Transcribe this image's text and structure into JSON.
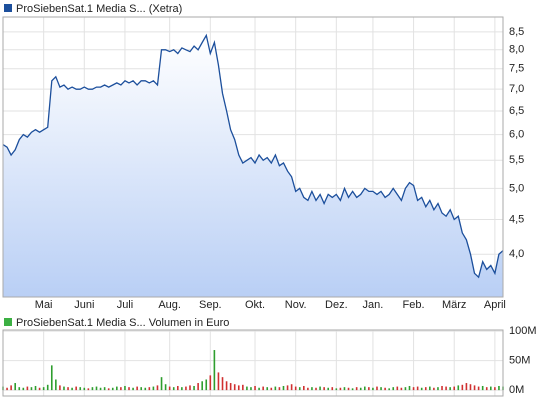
{
  "chart_data": [
    {
      "type": "line",
      "log_scale": true,
      "grid": true,
      "color": "#1c4f9c",
      "fill_color": "#b9cff5",
      "series": [
        {
          "name": "ProSiebenSat.1 Media S... (Xetra)",
          "color": "#1c4f9c",
          "values": [
            5.8,
            5.75,
            5.6,
            5.7,
            5.9,
            6.0,
            5.95,
            6.05,
            6.1,
            6.05,
            6.1,
            6.15,
            7.2,
            7.3,
            7.05,
            7.1,
            7.0,
            7.05,
            7.0,
            7.0,
            7.05,
            7.0,
            7.0,
            7.05,
            7.05,
            7.1,
            7.05,
            7.1,
            7.15,
            7.1,
            7.2,
            7.15,
            7.2,
            7.1,
            7.2,
            7.2,
            7.15,
            7.2,
            7.1,
            8.0,
            8.0,
            7.95,
            8.0,
            7.9,
            8.05,
            8.0,
            7.95,
            8.1,
            8.0,
            8.2,
            8.4,
            7.9,
            8.2,
            7.6,
            6.9,
            6.5,
            6.1,
            5.9,
            5.6,
            5.45,
            5.5,
            5.55,
            5.45,
            5.6,
            5.5,
            5.55,
            5.45,
            5.6,
            5.4,
            5.45,
            5.3,
            5.2,
            4.95,
            5.0,
            4.85,
            4.8,
            4.95,
            4.8,
            4.9,
            4.75,
            4.9,
            4.85,
            4.9,
            4.8,
            5.0,
            4.85,
            4.95,
            4.85,
            4.9,
            5.0,
            4.95,
            4.95,
            4.9,
            4.95,
            4.85,
            4.9,
            5.0,
            4.9,
            4.8,
            5.0,
            5.1,
            5.05,
            4.8,
            4.85,
            4.7,
            4.8,
            4.65,
            4.75,
            4.6,
            4.55,
            4.65,
            4.5,
            4.55,
            4.3,
            4.2,
            4.0,
            3.75,
            3.7,
            3.9,
            3.8,
            3.85,
            3.75,
            4.0,
            4.05
          ]
        }
      ],
      "xlim": [
        0,
        123
      ],
      "xticks": [
        {
          "value": 10,
          "label": "Mai"
        },
        {
          "value": 20,
          "label": "Juni"
        },
        {
          "value": 30,
          "label": "Juli"
        },
        {
          "value": 41,
          "label": "Aug."
        },
        {
          "value": 51,
          "label": "Sep."
        },
        {
          "value": 62,
          "label": "Okt."
        },
        {
          "value": 72,
          "label": "Nov."
        },
        {
          "value": 82,
          "label": "Dez."
        },
        {
          "value": 91,
          "label": "Jan."
        },
        {
          "value": 101,
          "label": "Feb."
        },
        {
          "value": 111,
          "label": "März"
        },
        {
          "value": 121,
          "label": "April"
        }
      ],
      "ylim": [
        3.46,
        8.94
      ],
      "yticks": [
        {
          "value": 4.0,
          "label": "4,0"
        },
        {
          "value": 4.5,
          "label": "4,5"
        },
        {
          "value": 5.0,
          "label": "5,0"
        },
        {
          "value": 5.5,
          "label": "5,5"
        },
        {
          "value": 6.0,
          "label": "6,0"
        },
        {
          "value": 6.5,
          "label": "6,5"
        },
        {
          "value": 7.0,
          "label": "7,0"
        },
        {
          "value": 7.5,
          "label": "7,5"
        },
        {
          "value": 8.0,
          "label": "8,0"
        },
        {
          "value": 8.5,
          "label": "8,5"
        }
      ]
    },
    {
      "type": "bar",
      "grid": true,
      "legend_color": "#3cb043",
      "up_color": "#2e9e2e",
      "down_color": "#d03030",
      "series": [
        {
          "name": "ProSiebenSat.1 Media S... Volumen in Euro",
          "values": [
            6,
            4,
            8,
            12,
            5,
            4,
            6,
            5,
            7,
            4,
            5,
            9,
            42,
            18,
            8,
            6,
            5,
            4,
            6,
            5,
            4,
            3,
            5,
            6,
            4,
            5,
            3,
            4,
            6,
            5,
            7,
            5,
            4,
            6,
            5,
            4,
            5,
            6,
            8,
            22,
            10,
            6,
            5,
            7,
            5,
            6,
            8,
            7,
            12,
            15,
            18,
            25,
            68,
            30,
            22,
            15,
            12,
            10,
            8,
            9,
            6,
            5,
            7,
            4,
            6,
            5,
            4,
            6,
            5,
            7,
            8,
            10,
            6,
            5,
            7,
            4,
            5,
            4,
            6,
            5,
            4,
            5,
            3,
            4,
            5,
            4,
            3,
            5,
            4,
            6,
            5,
            4,
            6,
            5,
            4,
            3,
            5,
            6,
            4,
            5,
            7,
            5,
            6,
            4,
            5,
            6,
            4,
            5,
            7,
            6,
            5,
            6,
            8,
            9,
            12,
            10,
            8,
            6,
            7,
            5,
            6,
            5,
            7,
            6
          ]
        }
      ],
      "ylim": [
        -10,
        102
      ],
      "yticks": [
        {
          "value": 0,
          "label": "0M"
        },
        {
          "value": 50,
          "label": "50M"
        },
        {
          "value": 100,
          "label": "100M"
        }
      ]
    }
  ]
}
